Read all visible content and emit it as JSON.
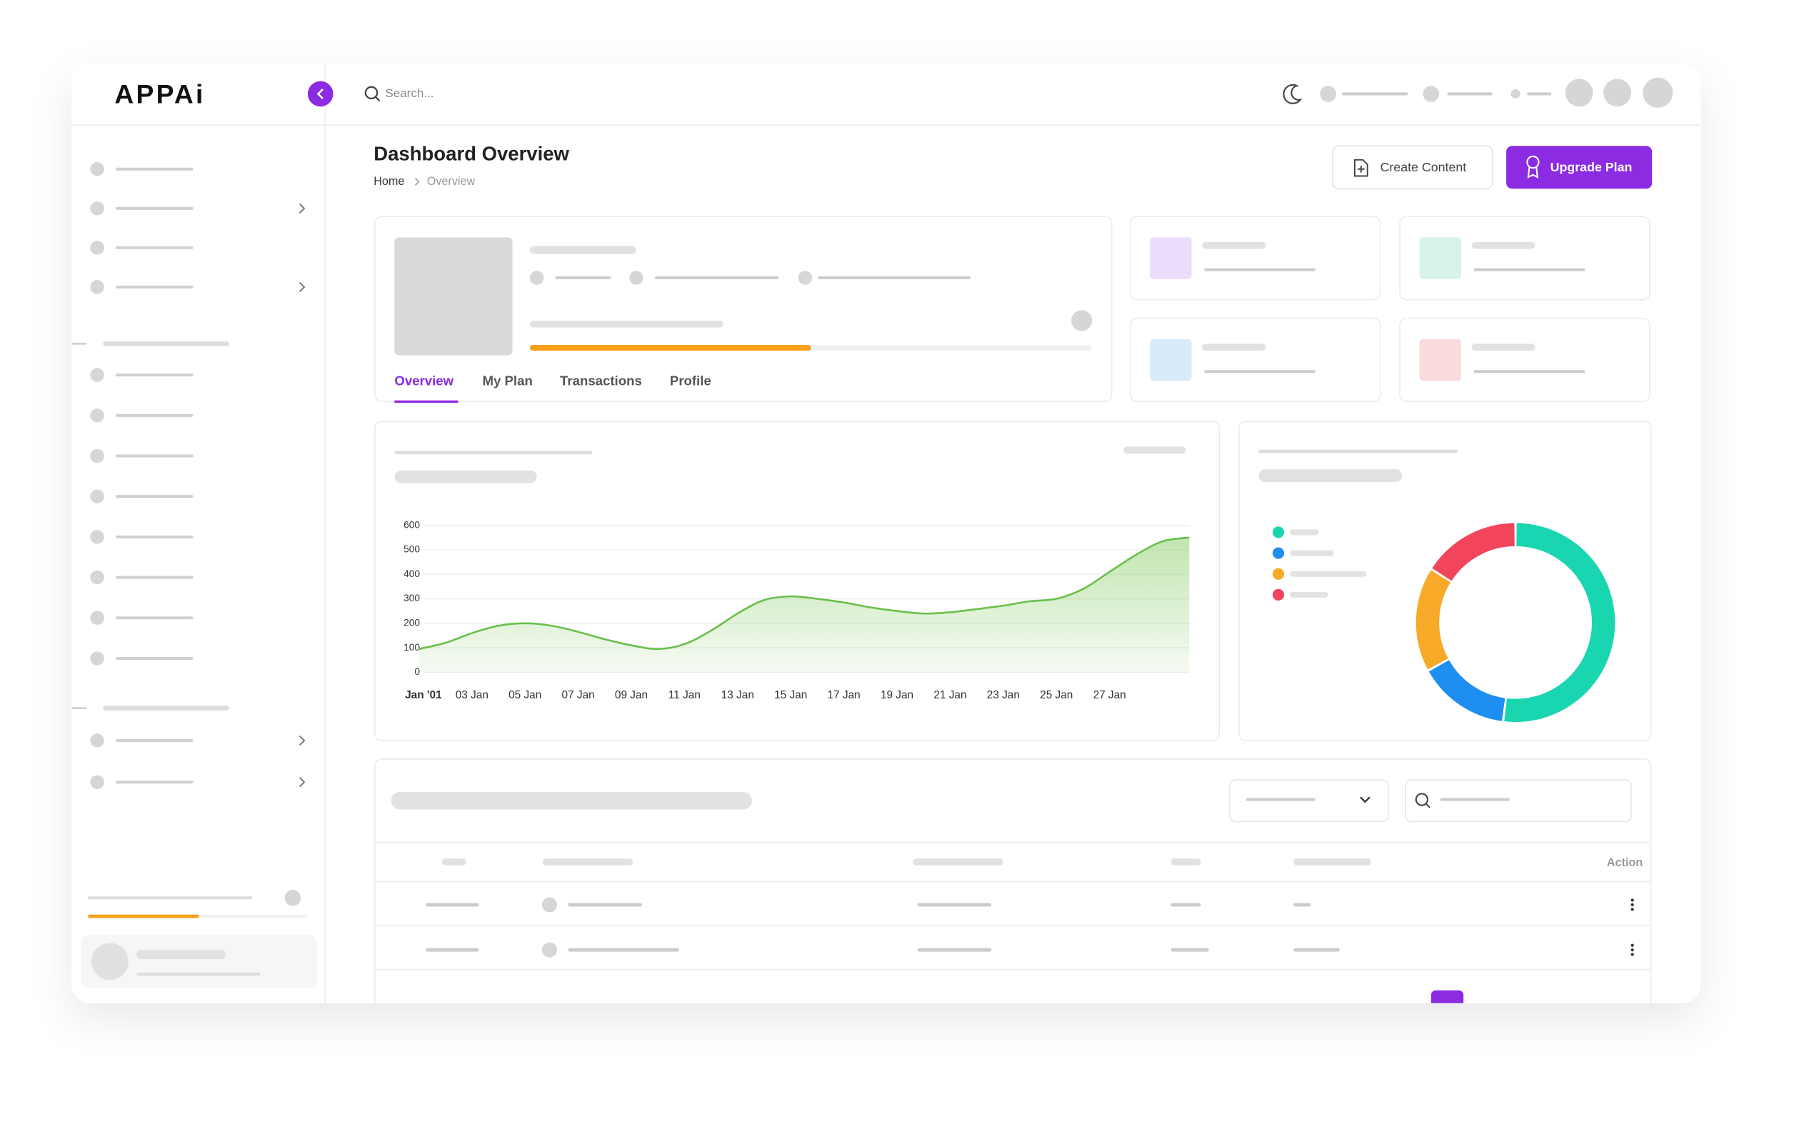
{
  "header": {
    "logo": "APPAi",
    "search_placeholder": "Search..."
  },
  "page": {
    "title": "Dashboard Overview",
    "breadcrumb": [
      "Home",
      "Overview"
    ],
    "buttons": [
      "Create Content",
      "Upgrade Plan"
    ],
    "tabs": [
      "Overview",
      "My Plan",
      "Transactions",
      "Profile"
    ]
  },
  "chart_data": [
    {
      "type": "area",
      "categories": [
        "Jan '01",
        null,
        "03 Jan",
        null,
        "05 Jan",
        null,
        "07 Jan",
        null,
        "09 Jan",
        null,
        "11 Jan",
        null,
        "13 Jan",
        null,
        "15 Jan",
        null,
        "17 Jan",
        null,
        "19 Jan",
        null,
        "21 Jan",
        null,
        "23 Jan",
        null,
        "25 Jan",
        null,
        "27 Jan",
        null,
        null,
        null
      ],
      "values": [
        95,
        120,
        160,
        190,
        200,
        190,
        165,
        135,
        110,
        95,
        115,
        170,
        240,
        295,
        310,
        300,
        285,
        265,
        250,
        240,
        245,
        258,
        272,
        290,
        300,
        340,
        410,
        480,
        535,
        550
      ],
      "color": "#6abf4b",
      "ylim": [
        0,
        600
      ],
      "yticks": [
        0,
        100,
        200,
        300,
        400,
        500,
        600
      ],
      "grid": true
    },
    {
      "type": "donut",
      "values": [
        52,
        15,
        17,
        16
      ],
      "colors": [
        "#1ad6b0",
        "#1e8ff0",
        "#f7a928",
        "#f2455c"
      ]
    }
  ],
  "table": {
    "headers": [
      "Action"
    ]
  }
}
